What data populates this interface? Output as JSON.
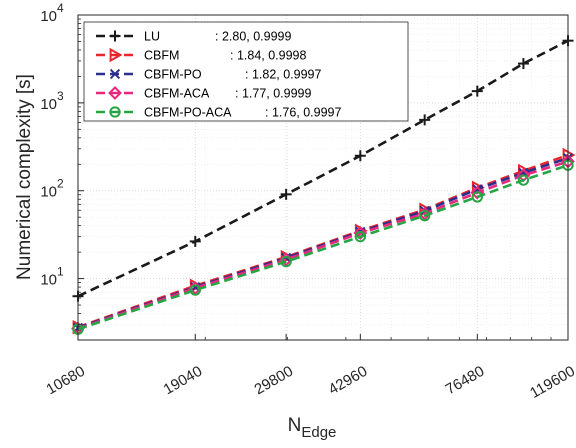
{
  "chart_data": {
    "type": "line",
    "xlabel": "N",
    "xlabel_sub": "Edge",
    "ylabel": "Numerical complexity [s]",
    "x_scale": "log",
    "y_scale": "log",
    "xlim": [
      10680,
      119600
    ],
    "ylim": [
      2,
      10000
    ],
    "xticks": [
      10680,
      19040,
      29800,
      42960,
      76480,
      119600
    ],
    "yticks": [
      {
        "value": 10,
        "base": "10",
        "exp": "1"
      },
      {
        "value": 100,
        "base": "10",
        "exp": "2"
      },
      {
        "value": 1000,
        "base": "10",
        "exp": "3"
      },
      {
        "value": 10000,
        "base": "10",
        "exp": "4"
      }
    ],
    "grid": true,
    "legend_position": "top-left",
    "x": [
      10680,
      19040,
      29800,
      42960,
      59000,
      76480,
      96000,
      119600
    ],
    "series": [
      {
        "name": "LU",
        "fit": ": 2.80, 0.9999",
        "color": "#1a1a1a",
        "marker": "plus",
        "values": [
          6.3,
          26.5,
          91,
          250,
          640,
          1360,
          2800,
          5100
        ]
      },
      {
        "name": "CBFM",
        "fit": ": 1.84, 0.9998",
        "color": "#e8262b",
        "marker": "triangle-right",
        "values": [
          2.8,
          8.3,
          17.6,
          35,
          61,
          108,
          168,
          255
        ]
      },
      {
        "name": "CBFM-PO",
        "fit": ": 1.82, 0.9997",
        "color": "#2b2f8f",
        "marker": "x",
        "values": [
          2.75,
          8.0,
          17.2,
          34,
          59,
          104,
          160,
          235
        ]
      },
      {
        "name": "CBFM-ACA",
        "fit": ": 1.77, 0.9999",
        "color": "#e8287e",
        "marker": "diamond",
        "values": [
          2.7,
          7.8,
          16.5,
          33,
          55,
          95,
          150,
          215
        ]
      },
      {
        "name": "CBFM-PO-ACA",
        "fit": ": 1.76, 0.9997",
        "color": "#27a544",
        "marker": "circle",
        "values": [
          2.65,
          7.4,
          15.6,
          30,
          52,
          85,
          132,
          195
        ]
      }
    ]
  }
}
